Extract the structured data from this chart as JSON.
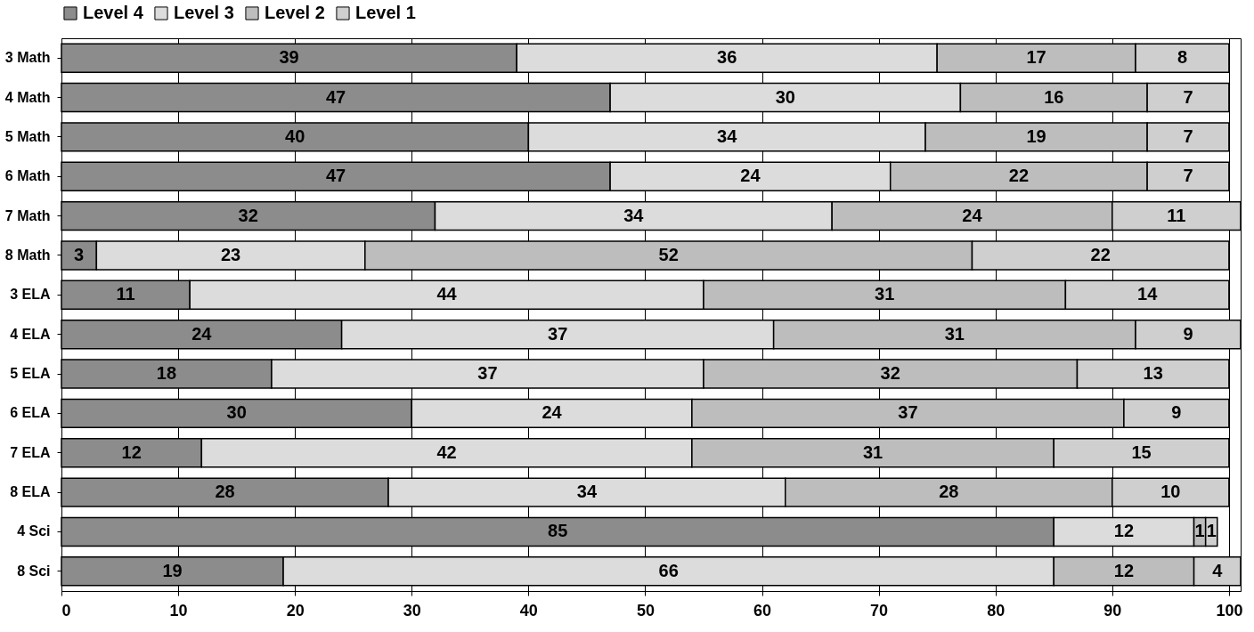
{
  "chart_data": {
    "type": "bar",
    "orientation": "horizontal",
    "stacked": true,
    "categories": [
      "3 Math",
      "4 Math",
      "5 Math",
      "6 Math",
      "7 Math",
      "8 Math",
      "3 ELA",
      "4 ELA",
      "5 ELA",
      "6 ELA",
      "7 ELA",
      "8 ELA",
      "4 Sci",
      "8 Sci"
    ],
    "series": [
      {
        "name": "Level 4",
        "color": "#8c8c8c",
        "values": [
          39,
          47,
          40,
          47,
          32,
          3,
          11,
          24,
          18,
          30,
          12,
          28,
          85,
          19
        ]
      },
      {
        "name": "Level 3",
        "color": "#dcdcdc",
        "values": [
          36,
          30,
          34,
          24,
          34,
          23,
          44,
          37,
          37,
          24,
          42,
          34,
          12,
          66
        ]
      },
      {
        "name": "Level 2",
        "color": "#bdbdbd",
        "values": [
          17,
          16,
          19,
          22,
          24,
          52,
          31,
          31,
          32,
          37,
          31,
          28,
          1,
          12
        ]
      },
      {
        "name": "Level 1",
        "color": "#cfcfcf",
        "values": [
          8,
          7,
          7,
          7,
          11,
          22,
          14,
          9,
          13,
          9,
          15,
          10,
          1,
          4
        ]
      }
    ],
    "xlim": [
      0,
      101
    ],
    "xticks": [
      0,
      10,
      20,
      30,
      40,
      50,
      60,
      70,
      80,
      90,
      100
    ],
    "grid": "x",
    "legend": "top",
    "data_labels": true
  }
}
